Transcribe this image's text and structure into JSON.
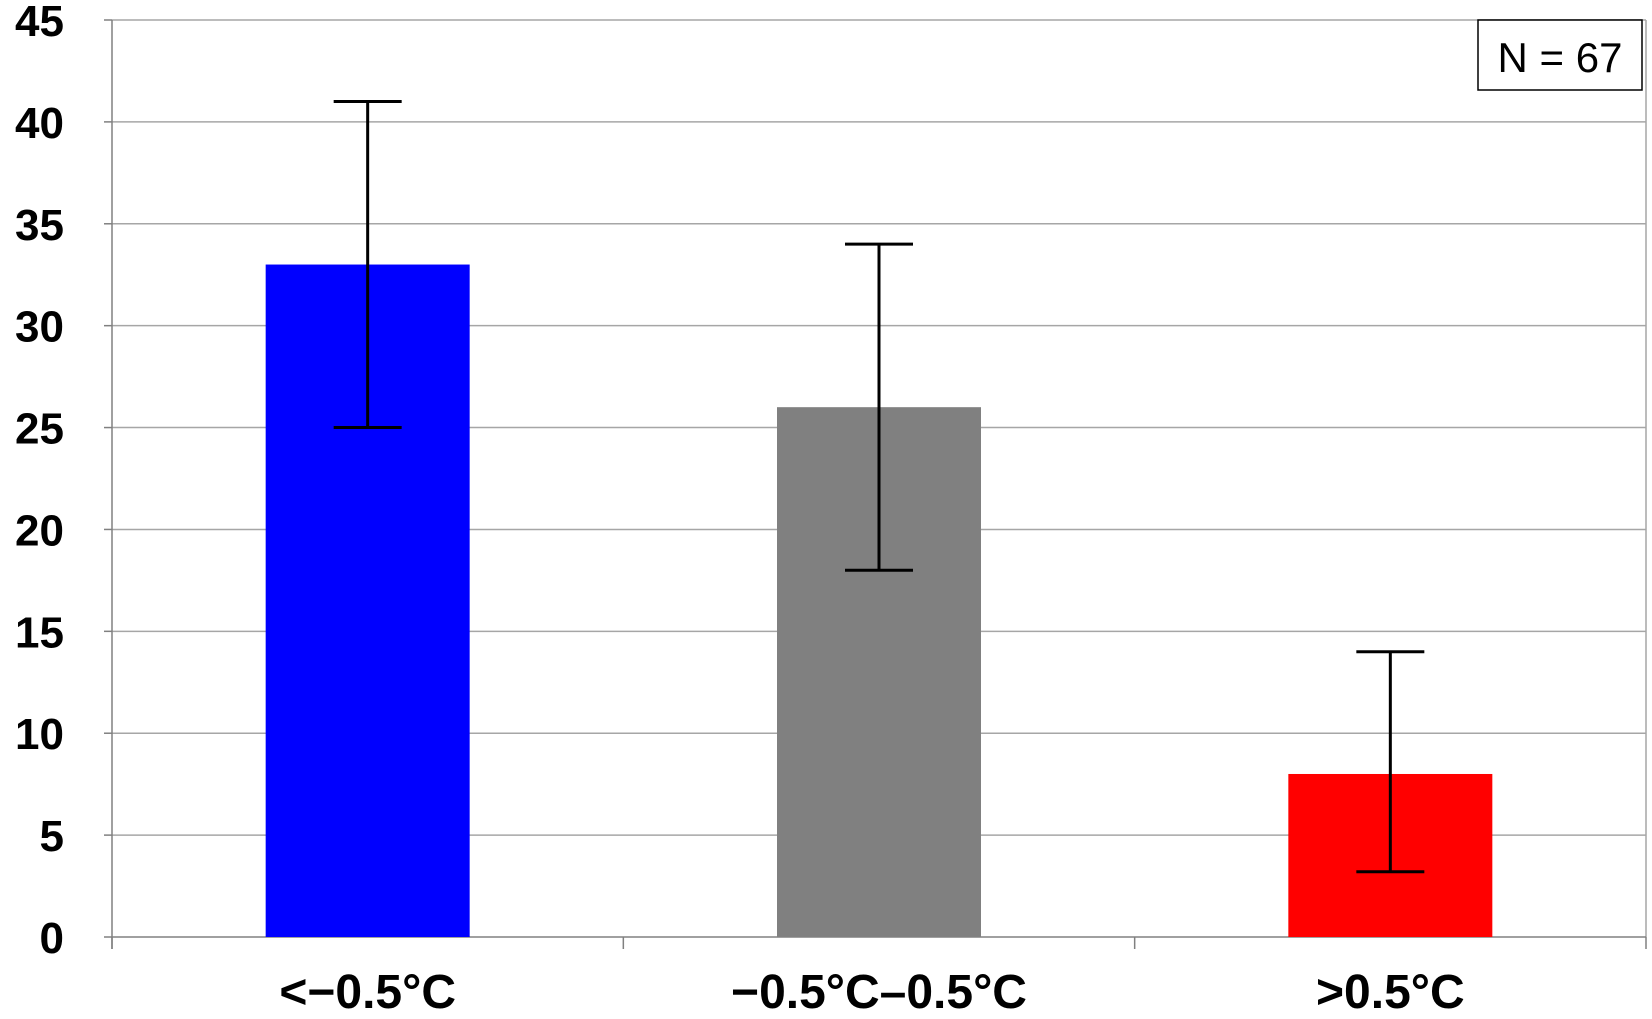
{
  "chart_data": {
    "type": "bar",
    "categories": [
      "<−0.5°C",
      "−0.5°C–0.5°C",
      ">0.5°C"
    ],
    "values": [
      33,
      26,
      8
    ],
    "error_low": [
      25,
      18,
      3.2
    ],
    "error_high": [
      41,
      34,
      14
    ],
    "colors": [
      "#0000ff",
      "#808080",
      "#ff0000"
    ],
    "ylim": [
      0,
      45
    ],
    "yticks": [
      0,
      5,
      10,
      15,
      20,
      25,
      30,
      35,
      40,
      45
    ],
    "grid": true,
    "annotation": "N = 67",
    "annotation_position": "top-right"
  }
}
